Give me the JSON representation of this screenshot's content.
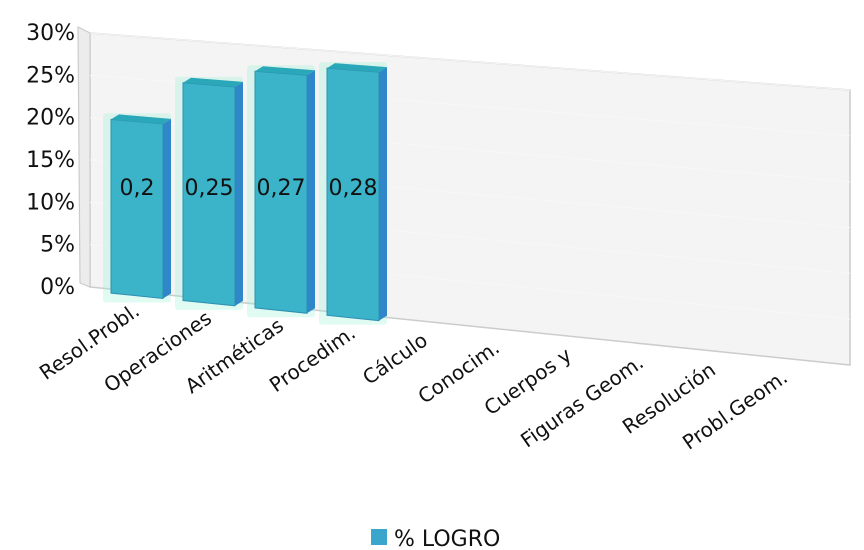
{
  "chart_data": {
    "type": "bar",
    "style": "3d-perspective",
    "categories": [
      "Resol.Probl.",
      "Operaciones",
      "Aritméticas",
      "Procedim.",
      "Cálculo",
      "Conocim.",
      "Cuerpos y",
      "Figuras Geom.",
      "Resolución",
      "Probl.Geom."
    ],
    "series": [
      {
        "name": "% LOGRO",
        "values": [
          0.2,
          0.25,
          0.27,
          0.28,
          null,
          null,
          null,
          null,
          null,
          null
        ],
        "data_labels": [
          "0,2",
          "0,25",
          "0,27",
          "0,28"
        ]
      }
    ],
    "y_ticks": [
      "0%",
      "5%",
      "10%",
      "15%",
      "20%",
      "25%",
      "30%"
    ],
    "ylim": [
      0,
      0.3
    ],
    "legend_position": "bottom",
    "colors": {
      "bar_front": "#3bb3c8",
      "bar_side": "#2f86c9",
      "bar_top": "#2aa7b8",
      "glow": "#8ff0d0",
      "wall": "#f4f4f4",
      "wall_edge": "#cccccc",
      "legend_swatch": "#3aa6cc"
    }
  }
}
